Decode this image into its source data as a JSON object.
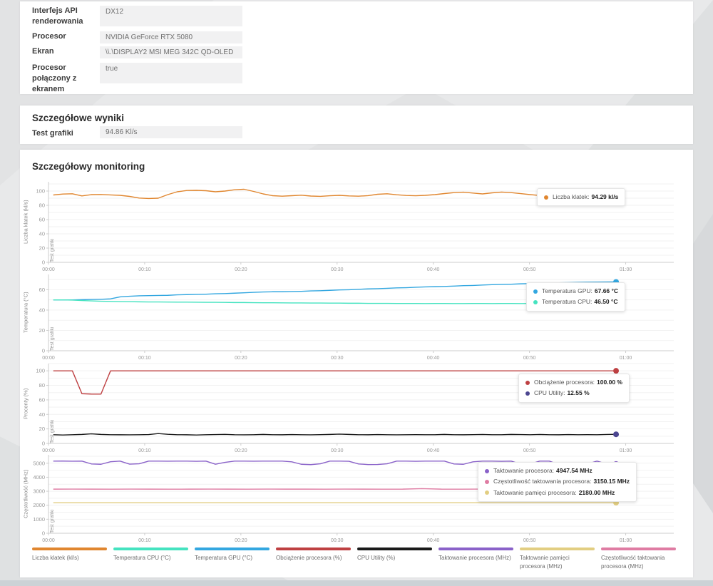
{
  "system_info": {
    "rows": [
      {
        "label": "Interfejs API renderowania",
        "value": "DX12"
      },
      {
        "label": "Procesor",
        "value": "NVIDIA GeForce RTX 5080"
      },
      {
        "label": "Ekran",
        "value": "\\\\.\\DISPLAY2 MSI MEG 342C QD-OLED"
      },
      {
        "label": "Procesor połączony z ekranem",
        "value": "true"
      }
    ]
  },
  "detailed_results": {
    "title": "Szczegółowe wyniki",
    "rows": [
      {
        "label": "Test grafiki",
        "value": "94.86 Kl/s"
      }
    ]
  },
  "monitoring": {
    "title": "Szczegółowy monitoring",
    "legend": [
      {
        "label": "Liczba klatek (kl/s)",
        "color": "#E0862F"
      },
      {
        "label": "Temperatura CPU (°C)",
        "color": "#45E3C0"
      },
      {
        "label": "Temperatura GPU (°C)",
        "color": "#33A7E0"
      },
      {
        "label": "Obciążenie procesora (%)",
        "color": "#BE4042"
      },
      {
        "label": "CPU Utility (%)",
        "color": "#1A1A1A"
      },
      {
        "label": "Taktowanie procesora (MHz)",
        "color": "#8A62C9"
      },
      {
        "label": "Taktowanie pamięci procesora (MHz)",
        "color": "#E2CE82"
      },
      {
        "label": "Częstotliwość taktowania procesora (MHz)",
        "color": "#DF7CA3"
      }
    ]
  },
  "chart_data": [
    {
      "type": "line",
      "ylabel": "Liczba klatek (kl/s)",
      "phase_label": "Test grafiki",
      "ylim": [
        0,
        113
      ],
      "yticks": [
        0,
        20,
        40,
        60,
        80,
        100
      ],
      "grid_step": 10,
      "x_tick_labels": [
        "00:00",
        "00:10",
        "00:20",
        "00:30",
        "00:40",
        "00:50",
        "01:00"
      ],
      "x_tick_minutes": [
        0,
        10,
        20,
        30,
        40,
        50,
        60
      ],
      "x_max_minutes": 65,
      "data_start_min": 0.5,
      "data_end_min": 59,
      "series": [
        {
          "name": "Liczba klatek",
          "unit": "kl/s",
          "color": "#E0862F",
          "values": [
            94.5,
            95.8,
            96.2,
            93.2,
            95.0,
            95.2,
            94.6,
            94.0,
            92.5,
            90.2,
            89.6,
            90.0,
            95.0,
            99.0,
            100.8,
            101.0,
            100.5,
            99.0,
            100.0,
            101.8,
            102.5,
            99.5,
            96.0,
            93.5,
            92.8,
            93.5,
            94.2,
            93.0,
            92.6,
            93.4,
            94.0,
            93.2,
            92.8,
            93.6,
            95.5,
            96.2,
            94.8,
            93.8,
            93.4,
            94.0,
            95.0,
            96.5,
            97.8,
            98.4,
            97.2,
            96.0,
            97.5,
            98.6,
            97.8,
            96.4,
            95.0,
            93.8,
            93.0,
            92.6,
            93.4,
            92.8,
            93.2,
            93.8,
            93.2,
            94.29
          ]
        }
      ],
      "tooltip": {
        "rows": [
          {
            "color": "#E0862F",
            "label": "Liczba klatek",
            "value": "94.29 kl/s"
          }
        ]
      }
    },
    {
      "type": "line",
      "ylabel": "Temperatura (°C)",
      "phase_label": "Test grafiki",
      "ylim": [
        0,
        75
      ],
      "yticks": [
        0,
        20,
        40,
        60
      ],
      "grid_step": 10,
      "x_tick_labels": [
        "00:00",
        "00:10",
        "00:20",
        "00:30",
        "00:40",
        "00:50",
        "01:00"
      ],
      "x_tick_minutes": [
        0,
        10,
        20,
        30,
        40,
        50,
        60
      ],
      "x_max_minutes": 65,
      "data_start_min": 0.5,
      "data_end_min": 59,
      "series": [
        {
          "name": "Temperatura GPU",
          "unit": "°C",
          "color": "#33A7E0",
          "values": [
            50,
            50,
            50,
            50.2,
            50.4,
            50.6,
            51,
            53,
            53.6,
            54,
            54.2,
            54.4,
            54.5,
            55,
            55.2,
            55.4,
            55.6,
            56,
            56.2,
            56.6,
            57,
            57.4,
            57.8,
            58,
            58,
            58.2,
            58.4,
            58.8,
            59,
            59.4,
            59.8,
            60,
            60.4,
            60.8,
            61,
            61.4,
            61.8,
            62,
            62.4,
            62.8,
            63,
            63.2,
            63.6,
            64,
            64.2,
            64.6,
            65,
            65.2,
            65.4,
            65.8,
            66,
            66.2,
            66.4,
            66.8,
            67,
            67.2,
            67.4,
            67.5,
            67.6,
            67.66
          ]
        },
        {
          "name": "Temperatura CPU",
          "unit": "°C",
          "color": "#45E3C0",
          "values": [
            50,
            50,
            49.8,
            49.4,
            49,
            48.7,
            48.5,
            48.3,
            48.2,
            48.1,
            48,
            48,
            47.9,
            47.8,
            47.8,
            47.7,
            47.6,
            47.6,
            47.5,
            47.4,
            47.4,
            47.3,
            47.2,
            47.2,
            47.1,
            47,
            47,
            46.9,
            46.9,
            46.8,
            46.8,
            46.7,
            46.7,
            46.6,
            46.6,
            46.6,
            46.5,
            46.5,
            46.5,
            46.4,
            46.5,
            46.5,
            46.4,
            46.4,
            46.5,
            46.5,
            46.4,
            46.5,
            46.5,
            46.4,
            46.5,
            46.5,
            46.5,
            46.4,
            46.5,
            46.5,
            46.5,
            46.5,
            46.5,
            46.5
          ]
        }
      ],
      "tooltip": {
        "rows": [
          {
            "color": "#33A7E0",
            "label": "Temperatura GPU",
            "value": "67.66 °C"
          },
          {
            "color": "#45E3C0",
            "label": "Temperatura CPU",
            "value": "46.50 °C"
          }
        ]
      }
    },
    {
      "type": "line",
      "ylabel": "Procenty (%)",
      "phase_label": "Test grafiki",
      "ylim": [
        0,
        110
      ],
      "yticks": [
        0,
        20,
        40,
        60,
        80,
        100
      ],
      "grid_step": 10,
      "x_tick_labels": [
        "00:00",
        "00:10",
        "00:20",
        "00:30",
        "00:40",
        "00:50",
        "01:00"
      ],
      "x_tick_minutes": [
        0,
        10,
        20,
        30,
        40,
        50,
        60
      ],
      "x_max_minutes": 65,
      "data_start_min": 0.5,
      "data_end_min": 59,
      "series": [
        {
          "name": "Obciążenie procesora",
          "unit": "%",
          "color": "#BE4042",
          "values": [
            100,
            100,
            100,
            68.5,
            68,
            68,
            100,
            100,
            100,
            100,
            100,
            100,
            100,
            100,
            100,
            100,
            100,
            100,
            100,
            100,
            100,
            100,
            100,
            100,
            100,
            100,
            100,
            100,
            100,
            100,
            100,
            100,
            100,
            100,
            100,
            100,
            100,
            100,
            100,
            100,
            100,
            100,
            100,
            100,
            100,
            100,
            100,
            100,
            100,
            100,
            100,
            100,
            100,
            100,
            100,
            100,
            100,
            100,
            100,
            100
          ]
        },
        {
          "name": "CPU Utility",
          "unit": "%",
          "color": "#1A1A1A",
          "dot_color": "#4C4690",
          "values": [
            12,
            11.6,
            12,
            12.4,
            13.2,
            12.4,
            12,
            11.9,
            11.8,
            12,
            12.2,
            13.6,
            12.6,
            12,
            11.9,
            11.6,
            12,
            12.2,
            12.5,
            12,
            11.8,
            12,
            12.4,
            12,
            11.9,
            12.2,
            12,
            11.8,
            12.1,
            12.4,
            12.8,
            12.4,
            12,
            11.9,
            12.2,
            12,
            11.8,
            12,
            12.1,
            12,
            12,
            12.4,
            12,
            11.9,
            12.1,
            12.3,
            12,
            12,
            12.4,
            12.2,
            12,
            12.3,
            12,
            11.9,
            12.2,
            12,
            12.1,
            12,
            12.3,
            12.55
          ]
        }
      ],
      "tooltip": {
        "rows": [
          {
            "color": "#BE4042",
            "label": "Obciążenie procesora",
            "value": "100.00 %"
          },
          {
            "color": "#4C4690",
            "label": "CPU Utility",
            "value": "12.55 %"
          }
        ]
      }
    },
    {
      "type": "line",
      "ylabel": "Częstotliwość (MHz)",
      "phase_label": "Test grafiki",
      "ylim": [
        0,
        5600
      ],
      "yticks": [
        0,
        1000,
        2000,
        3000,
        4000,
        5000
      ],
      "grid_step": 500,
      "x_tick_labels": [
        "00:00",
        "00:10",
        "00:20",
        "00:30",
        "00:40",
        "00:50",
        "01:00"
      ],
      "x_tick_minutes": [
        0,
        10,
        20,
        30,
        40,
        50,
        60
      ],
      "x_max_minutes": 65,
      "data_start_min": 0.5,
      "data_end_min": 59,
      "series": [
        {
          "name": "Taktowanie procesora",
          "unit": "MHz",
          "color": "#8A62C9",
          "values": [
            5150,
            5155,
            5145,
            5150,
            4950,
            4925,
            5105,
            5150,
            4935,
            4960,
            5150,
            5150,
            5145,
            5150,
            5150,
            5140,
            5150,
            4930,
            5060,
            5150,
            5150,
            5145,
            5150,
            5150,
            5150,
            5100,
            4925,
            4900,
            4960,
            5150,
            5150,
            5140,
            4950,
            4905,
            4910,
            4960,
            5150,
            5150,
            5140,
            5150,
            5150,
            5150,
            4950,
            4925,
            5100,
            5150,
            5150,
            5140,
            5150,
            4935,
            4950,
            5150,
            5150,
            4905,
            4890,
            4905,
            4950,
            5150,
            4950,
            4947.54
          ]
        },
        {
          "name": "Częstotliwość taktowania procesora",
          "unit": "MHz",
          "color": "#DF7CA3",
          "values": [
            3150,
            3152,
            3150,
            3148,
            3152,
            3150,
            3148,
            3150,
            3154,
            3150,
            3148,
            3152,
            3150,
            3150,
            3148,
            3152,
            3150,
            3148,
            3150,
            3185,
            3150,
            3148,
            3152,
            3150,
            3148,
            3150,
            3152,
            3148,
            3150,
            3150.15
          ]
        },
        {
          "name": "Taktowanie pamięci procesora",
          "unit": "MHz",
          "color": "#E2CE82",
          "values": [
            2180,
            2180
          ]
        }
      ],
      "tooltip": {
        "rows": [
          {
            "color": "#8A62C9",
            "label": "Taktowanie procesora",
            "value": "4947.54 MHz"
          },
          {
            "color": "#DF7CA3",
            "label": "Częstotliwość taktowania procesora",
            "value": "3150.15 MHz"
          },
          {
            "color": "#E2CE82",
            "label": "Taktowanie pamięci procesora",
            "value": "2180.00 MHz"
          }
        ]
      }
    }
  ]
}
